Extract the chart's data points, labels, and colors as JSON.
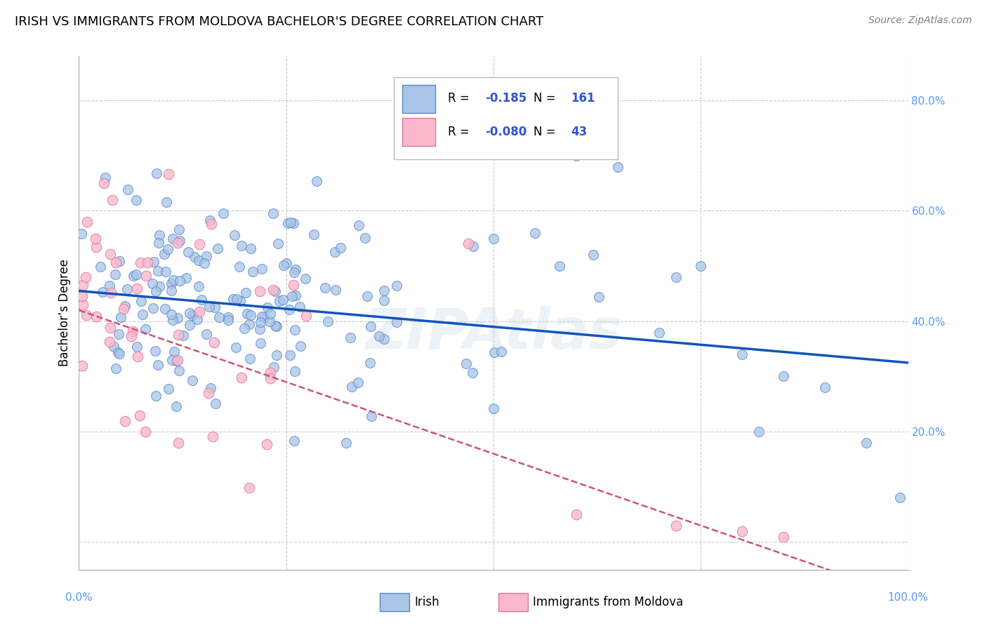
{
  "title": "IRISH VS IMMIGRANTS FROM MOLDOVA BACHELOR'S DEGREE CORRELATION CHART",
  "source": "Source: ZipAtlas.com",
  "ylabel": "Bachelor’s Degree",
  "watermark": "ZIPAtlas",
  "irish_color": "#a8c4e8",
  "irish_edge_color": "#5588cc",
  "irish_line_color": "#1155bb",
  "moldova_color": "#f9b8cc",
  "moldova_edge_color": "#dd7799",
  "moldova_line_color": "#cc5577",
  "irish_R": "-0.185",
  "irish_N": "161",
  "moldova_R": "-0.080",
  "moldova_N": "43",
  "legend_R_color": "#3355cc",
  "legend_N_color": "#3355cc",
  "irish_label": "Irish",
  "moldova_label": "Immigrants from Moldova",
  "background_color": "#ffffff",
  "grid_color": "#cccccc",
  "tick_color": "#5599ff",
  "xlim": [
    0.0,
    1.0
  ],
  "ylim": [
    -0.05,
    0.88
  ],
  "yticks": [
    0.0,
    0.2,
    0.4,
    0.6,
    0.8
  ],
  "right_ytick_labels": [
    "",
    "20.0%",
    "40.0%",
    "60.0%",
    "80.0%"
  ],
  "irish_trend": [
    0.455,
    0.325
  ],
  "moldova_trend": [
    0.42,
    -0.1
  ]
}
